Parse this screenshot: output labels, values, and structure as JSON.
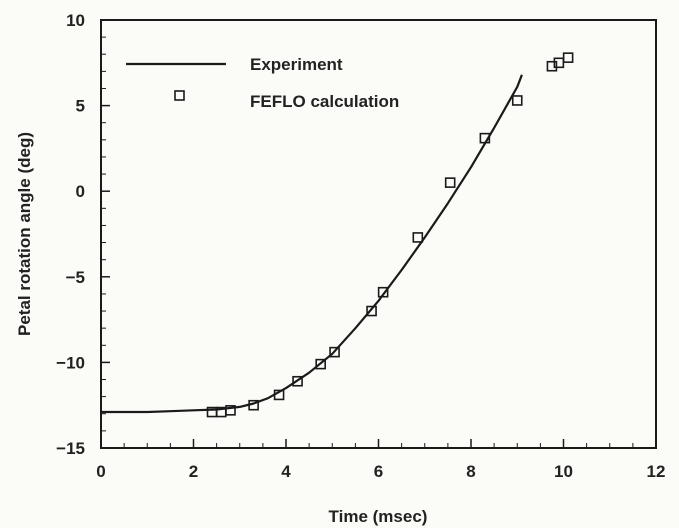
{
  "chart_data": {
    "type": "scatter",
    "title": "",
    "xlabel": "Time (msec)",
    "ylabel": "Petal rotation angle (deg)",
    "xlim": [
      0,
      12
    ],
    "ylim": [
      -15,
      10
    ],
    "xticks": [
      0,
      2,
      4,
      6,
      8,
      10,
      12
    ],
    "yticks": [
      -15,
      -10,
      -5,
      0,
      5,
      10
    ],
    "xtick_labels": [
      "0",
      "2",
      "4",
      "6",
      "8",
      "10",
      "12"
    ],
    "ytick_labels": [
      "−15",
      "−10",
      "−5",
      "0",
      "5",
      "10"
    ],
    "grid": false,
    "legend": {
      "position": "top-left",
      "entries": [
        "Experiment",
        "FEFLO calculation"
      ]
    },
    "series": [
      {
        "name": "Experiment",
        "type": "line",
        "color": "#1a1a1a",
        "x": [
          0,
          0.5,
          1.0,
          1.5,
          2.0,
          2.5,
          3.0,
          3.3,
          3.6,
          4.0,
          4.5,
          5.0,
          5.5,
          6.0,
          6.5,
          7.0,
          7.5,
          8.0,
          8.5,
          9.0,
          9.1
        ],
        "y": [
          -12.9,
          -12.9,
          -12.9,
          -12.85,
          -12.8,
          -12.75,
          -12.6,
          -12.4,
          -12.1,
          -11.5,
          -10.6,
          -9.5,
          -8.0,
          -6.4,
          -4.6,
          -2.7,
          -0.7,
          1.4,
          3.7,
          6.1,
          6.8
        ]
      },
      {
        "name": "FEFLO calculation",
        "type": "scatter",
        "marker": "square-open",
        "color": "#1a1a1a",
        "x": [
          2.4,
          2.6,
          2.8,
          3.3,
          3.85,
          4.25,
          4.75,
          5.05,
          5.85,
          6.1,
          6.85,
          7.55,
          8.3,
          9.0,
          9.75,
          9.9,
          10.1
        ],
        "y": [
          -12.9,
          -12.9,
          -12.8,
          -12.5,
          -11.9,
          -11.1,
          -10.1,
          -9.4,
          -7.0,
          -5.9,
          -2.7,
          0.5,
          3.1,
          5.3,
          7.3,
          7.5,
          7.8
        ]
      }
    ]
  }
}
